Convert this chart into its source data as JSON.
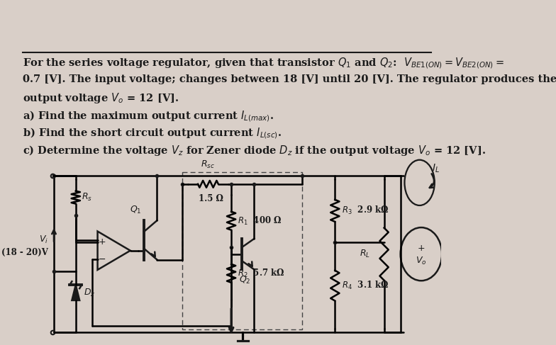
{
  "bg_color": "#d9cfc8",
  "paper_color": "#e8e0d8",
  "text_color": "#1a1a1a",
  "fig_width": 7.84,
  "fig_height": 4.87,
  "line1": "For the series voltage regulator, given that transistor $Q_1$ and $Q_2$:  $V_{BE1(ON)} = V_{BE2(ON)} =$",
  "line2": "0.7 [V]. The input voltage; changes between 18 [V] until 20 [V]. The regulator produces the",
  "line3": "output voltage $V_o$ = 12 [V].",
  "line4a": "a) Find the maximum output current $I_{L(max)}$.",
  "line4b": "b) Find the short circuit output current $I_{L(sc)}$.",
  "line4c": "c) Determine the voltage $V_z$ for Zener diode $D_z$ if the output voltage $V_o$ = 12 [V]."
}
